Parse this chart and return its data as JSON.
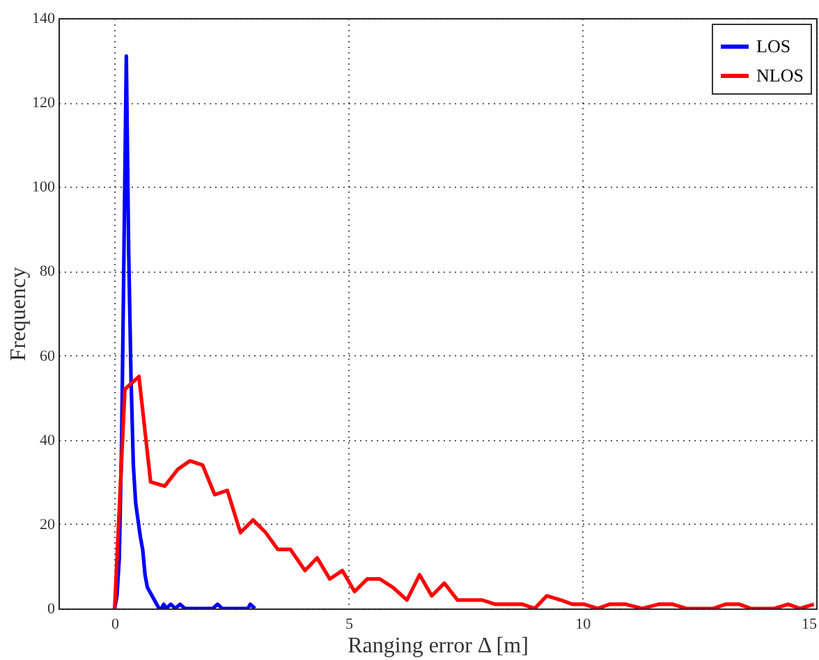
{
  "chart_data": {
    "type": "line",
    "xlabel": "Ranging error Δ [m]",
    "ylabel": "Frequency",
    "xlim": [
      -1.2,
      15
    ],
    "xticks": [
      0,
      5,
      10,
      15
    ],
    "ylim": [
      0,
      140
    ],
    "yticks": [
      0,
      20,
      40,
      60,
      80,
      100,
      120,
      140
    ],
    "grid": true,
    "legend": "top right",
    "line_style": "solid",
    "marker": "none",
    "series": [
      {
        "name": "LOS",
        "color": "#0000ff",
        "x": [
          0,
          0.05,
          0.1,
          0.15,
          0.2,
          0.25,
          0.3,
          0.35,
          0.4,
          0.45,
          0.5,
          0.55,
          0.6,
          0.65,
          0.7,
          0.75,
          0.8,
          0.85,
          0.9,
          0.95,
          1.0,
          1.05,
          1.1,
          1.2,
          1.3,
          1.4,
          1.5,
          2.1,
          2.2,
          2.3,
          2.85,
          2.9,
          3.0
        ],
        "values": [
          0,
          3,
          12,
          40,
          85,
          131,
          85,
          55,
          34,
          25,
          21,
          17,
          14,
          8,
          5,
          4,
          3,
          2,
          1,
          0,
          0,
          1,
          0,
          1,
          0,
          1,
          0,
          0,
          1,
          0,
          0,
          1,
          0
        ]
      },
      {
        "name": "NLOS",
        "color": "#ff0000",
        "x": [
          0,
          0.22,
          0.52,
          0.77,
          1.07,
          1.35,
          1.61,
          1.88,
          2.14,
          2.41,
          2.69,
          2.96,
          3.23,
          3.49,
          3.76,
          4.07,
          4.33,
          4.6,
          4.87,
          5.13,
          5.4,
          5.67,
          5.95,
          6.25,
          6.52,
          6.78,
          7.05,
          7.33,
          7.6,
          7.86,
          8.14,
          8.44,
          8.72,
          8.98,
          9.24,
          9.54,
          9.79,
          10.04,
          10.33,
          10.58,
          10.93,
          11.28,
          11.63,
          11.93,
          12.23,
          12.8,
          13.06,
          13.36,
          13.6,
          14.1,
          14.4,
          14.65,
          14.95
        ],
        "values": [
          0,
          52,
          55,
          30,
          29,
          33,
          35,
          34,
          27,
          28,
          18,
          21,
          18,
          14,
          14,
          9,
          12,
          7,
          9,
          4,
          7,
          7,
          5,
          2,
          8,
          3,
          6,
          2,
          2,
          2,
          1,
          1,
          1,
          0,
          3,
          2,
          1,
          1,
          0,
          1,
          1,
          0,
          1,
          1,
          0,
          0,
          1,
          1,
          0,
          0,
          1,
          0,
          1
        ]
      }
    ]
  }
}
